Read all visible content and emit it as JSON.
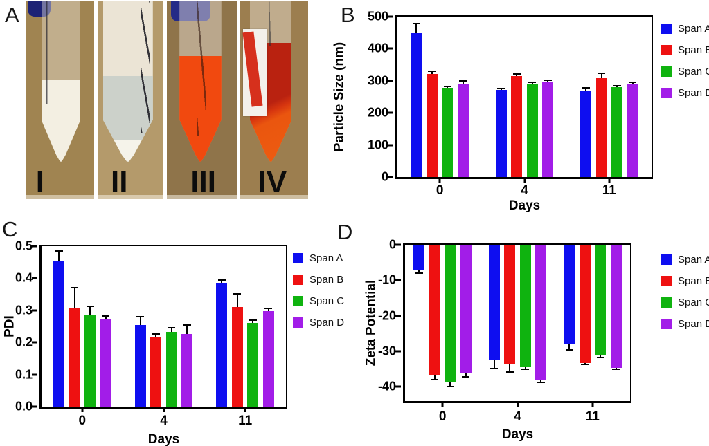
{
  "panel_a": {
    "label": "A",
    "tubes": [
      {
        "numeral": "I",
        "bg": "#a08451",
        "tube_tint": "rgba(238,233,222,0.42)",
        "liquid_color": "#f3efe2",
        "fill_pct": 50
      },
      {
        "numeral": "II",
        "bg": "#b49a6b",
        "tube_tint": "rgba(250,249,243,0.78)",
        "liquid_color": "#ccd1ca",
        "fill_pct": 52
      },
      {
        "numeral": "III",
        "bg": "#8f744a",
        "tube_tint": "rgba(240,230,222,0.45)",
        "liquid_color": "#f1490f",
        "fill_pct": 64
      },
      {
        "numeral": "IV",
        "bg": "#9c7e4f",
        "tube_tint": "rgba(238,229,218,0.45)",
        "liquid_color": "#ba2110",
        "fill_pct": 72
      }
    ]
  },
  "chart_data": [
    {
      "id": "particle_size",
      "panel": "B",
      "type": "bar",
      "categories": [
        "0",
        "4",
        "11"
      ],
      "xlabel": "Days",
      "ylabel": "Particle Size (nm)",
      "ylim": [
        0,
        500
      ],
      "yticks": [
        {
          "v": 0,
          "label": "0"
        },
        {
          "v": 100,
          "label": "100"
        },
        {
          "v": 200,
          "label": "200"
        },
        {
          "v": 300,
          "label": "300"
        },
        {
          "v": 400,
          "label": "400"
        },
        {
          "v": 500,
          "label": "500"
        }
      ],
      "grid": false,
      "legend_position": "right",
      "series": [
        {
          "name": "Span A",
          "color": "#0e0ef0",
          "values": [
            448,
            272,
            270
          ],
          "errors": [
            30,
            3,
            7
          ]
        },
        {
          "name": "Span B",
          "color": "#ee1111",
          "values": [
            322,
            315,
            308
          ],
          "errors": [
            8,
            6,
            16
          ]
        },
        {
          "name": "Span C",
          "color": "#0fb30f",
          "values": [
            278,
            288,
            281
          ],
          "errors": [
            5,
            7,
            4
          ]
        },
        {
          "name": "Span D",
          "color": "#a21de8",
          "values": [
            291,
            297,
            288
          ],
          "errors": [
            8,
            5,
            8
          ]
        }
      ]
    },
    {
      "id": "pdi",
      "panel": "C",
      "type": "bar",
      "categories": [
        "0",
        "4",
        "11"
      ],
      "xlabel": "Days",
      "ylabel": "PDI",
      "ylim": [
        0,
        0.5
      ],
      "yticks": [
        {
          "v": 0,
          "label": "0.0"
        },
        {
          "v": 0.1,
          "label": "0.1"
        },
        {
          "v": 0.2,
          "label": "0.2"
        },
        {
          "v": 0.3,
          "label": "0.3"
        },
        {
          "v": 0.4,
          "label": "0.4"
        },
        {
          "v": 0.5,
          "label": "0.5"
        }
      ],
      "grid": false,
      "legend_position": "right",
      "series": [
        {
          "name": "Span A",
          "color": "#0e0ef0",
          "values": [
            0.452,
            0.254,
            0.385
          ],
          "errors": [
            0.033,
            0.027,
            0.01
          ]
        },
        {
          "name": "Span B",
          "color": "#ee1111",
          "values": [
            0.308,
            0.216,
            0.311
          ],
          "errors": [
            0.062,
            0.01,
            0.04
          ]
        },
        {
          "name": "Span C",
          "color": "#0fb30f",
          "values": [
            0.286,
            0.233,
            0.26
          ],
          "errors": [
            0.026,
            0.013,
            0.009
          ]
        },
        {
          "name": "Span D",
          "color": "#a21de8",
          "values": [
            0.274,
            0.226,
            0.298
          ],
          "errors": [
            0.009,
            0.028,
            0.008
          ]
        }
      ]
    },
    {
      "id": "zeta_potential",
      "panel": "D",
      "type": "bar",
      "categories": [
        "0",
        "4",
        "11"
      ],
      "xlabel": "Days",
      "ylabel": "Zeta Potential",
      "ylim": [
        0,
        -44
      ],
      "yticks": [
        {
          "v": 0,
          "label": "0"
        },
        {
          "v": -10,
          "label": "-10"
        },
        {
          "v": -20,
          "label": "-20"
        },
        {
          "v": -30,
          "label": "-30"
        },
        {
          "v": -40,
          "label": "-40"
        }
      ],
      "grid": false,
      "legend_position": "right",
      "series": [
        {
          "name": "Span A",
          "color": "#0e0ef0",
          "values": [
            -7.0,
            -32.6,
            -28.1
          ],
          "errors": [
            1.0,
            2.2,
            1.4
          ]
        },
        {
          "name": "Span B",
          "color": "#ee1111",
          "values": [
            -36.8,
            -33.5,
            -33.2
          ],
          "errors": [
            1.1,
            2.3,
            0.5
          ]
        },
        {
          "name": "Span C",
          "color": "#0fb30f",
          "values": [
            -38.8,
            -34.4,
            -31.2
          ],
          "errors": [
            1.2,
            0.6,
            0.5
          ]
        },
        {
          "name": "Span D",
          "color": "#a21de8",
          "values": [
            -36.2,
            -38.1,
            -34.6
          ],
          "errors": [
            0.9,
            0.7,
            0.5
          ]
        }
      ]
    }
  ]
}
